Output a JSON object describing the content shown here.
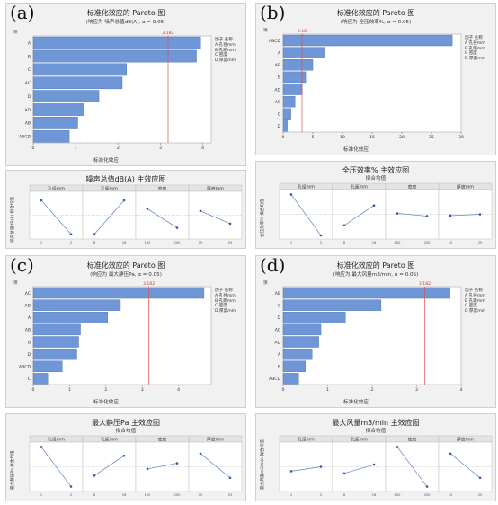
{
  "panels": [
    {
      "letter": "(a)",
      "pareto": {
        "title": "标准化效应的 Pareto 图",
        "subtitle": "(响应为 噪声总值dB(A), α = 0.05)",
        "header_col": "项",
        "ref_label": "3.182",
        "xlabel": "标准化效应",
        "legend_header": [
          "因子",
          "名称"
        ],
        "legend": [
          [
            "A",
            "孔径mm"
          ],
          [
            "B",
            "孔距mm"
          ],
          [
            "C",
            "密度"
          ],
          [
            "D",
            "厚度mm"
          ]
        ]
      },
      "main": {
        "title": "噪声总值dB(A) 主效应图",
        "subtitle": "拟合均值",
        "ylabel": "噪声总值dB(A) 拟合均值",
        "factors": [
          "孔径mm",
          "孔距mm",
          "密度",
          "厚度mm"
        ]
      }
    },
    {
      "letter": "(b)",
      "pareto": {
        "title": "标准化效应的 Pareto 图",
        "subtitle": "(响应为 全压效率%, α = 0.05)",
        "header_col": "项",
        "ref_label": "3.18",
        "xlabel": "标准化效应",
        "legend_header": [
          "因子",
          "名称"
        ],
        "legend": [
          [
            "A",
            "孔径mm"
          ],
          [
            "B",
            "孔距mm"
          ],
          [
            "C",
            "密度"
          ],
          [
            "D",
            "厚度mm"
          ]
        ]
      },
      "main": {
        "title": "全压效率% 主效应图",
        "subtitle": "拟合均值",
        "ylabel": "全压效率% 拟合均值",
        "factors": [
          "孔径mm",
          "孔距mm",
          "密度",
          "厚度mm"
        ]
      }
    },
    {
      "letter": "(c)",
      "pareto": {
        "title": "标准化效应的 Pareto 图",
        "subtitle": "(响应为 最大静压Pa, α = 0.05)",
        "header_col": "项",
        "ref_label": "3.182",
        "xlabel": "标准化效应",
        "legend_header": [
          "因子",
          "名称"
        ],
        "legend": [
          [
            "A",
            "孔径mm"
          ],
          [
            "B",
            "孔距mm"
          ],
          [
            "C",
            "密度"
          ],
          [
            "D",
            "厚度mm"
          ]
        ]
      },
      "main": {
        "title": "最大静压Pa 主效应图",
        "subtitle": "拟合均值",
        "ylabel": "最大静压Pa 拟合均值",
        "factors": [
          "孔径mm",
          "孔距mm",
          "密度",
          "厚度mm"
        ]
      }
    },
    {
      "letter": "(d)",
      "pareto": {
        "title": "标准化效应的 Pareto 图",
        "subtitle": "(响应为 最大风量m3/min, α = 0.05)",
        "header_col": "项",
        "ref_label": "3.182",
        "xlabel": "标准化效应",
        "legend_header": [
          "因子",
          "名称"
        ],
        "legend": [
          [
            "A",
            "孔径mm"
          ],
          [
            "B",
            "孔距mm"
          ],
          [
            "C",
            "密度"
          ],
          [
            "D",
            "厚度mm"
          ]
        ]
      },
      "main": {
        "title": "最大风量m3/min 主效应图",
        "subtitle": "拟合均值",
        "ylabel": "最大风量m3/min 拟合均值",
        "factors": [
          "孔径mm",
          "孔距mm",
          "密度",
          "厚度mm"
        ]
      }
    }
  ],
  "colors": {
    "bar": "#6f96d6",
    "bar_edge": "#4a6fb0",
    "ref_line": "#d9534f",
    "ref_text": "#c0392b",
    "line": "#5a7fc4",
    "point": "#2e5aa8",
    "mean_line": "#bbbbbb"
  },
  "chart_data": [
    {
      "type": "bar",
      "orientation": "horizontal",
      "panel": "a",
      "categories": [
        "A",
        "B",
        "C",
        "AC",
        "D",
        "AD",
        "AB",
        "ABCD"
      ],
      "values": [
        3.95,
        3.85,
        2.2,
        2.1,
        1.55,
        1.2,
        1.05,
        0.85
      ],
      "reference": 3.182,
      "xticks": [
        0,
        1,
        2,
        3,
        4
      ],
      "xlim": [
        0,
        4.2
      ]
    },
    {
      "type": "bar",
      "orientation": "horizontal",
      "panel": "b",
      "categories": [
        "ABCD",
        "A",
        "AB",
        "B",
        "AD",
        "AC",
        "C",
        "D"
      ],
      "values": [
        28.5,
        7,
        5,
        3.8,
        3.2,
        2.0,
        1.3,
        0.7
      ],
      "reference": 3.18,
      "xticks": [
        0,
        5,
        10,
        15,
        20,
        25,
        30
      ],
      "xlim": [
        0,
        30
      ]
    },
    {
      "type": "bar",
      "orientation": "horizontal",
      "panel": "c",
      "categories": [
        "AC",
        "AD",
        "A",
        "AB",
        "B",
        "D",
        "ABCD",
        "C"
      ],
      "values": [
        4.7,
        2.4,
        2.05,
        1.3,
        1.25,
        1.2,
        0.8,
        0.4
      ],
      "reference": 3.182,
      "xticks": [
        0,
        1,
        2,
        3,
        4
      ],
      "xlim": [
        0,
        4.9
      ]
    },
    {
      "type": "bar",
      "orientation": "horizontal",
      "panel": "d",
      "categories": [
        "AB",
        "C",
        "D",
        "AC",
        "AD",
        "A",
        "B",
        "ABCD"
      ],
      "values": [
        3.75,
        2.2,
        1.4,
        0.85,
        0.8,
        0.65,
        0.5,
        0.35
      ],
      "reference": 3.182,
      "xticks": [
        0,
        1,
        2,
        3,
        4
      ],
      "xlim": [
        0,
        4
      ]
    },
    {
      "type": "line",
      "panel": "a-main",
      "facets": [
        {
          "factor": "孔径mm",
          "x": [
            "1",
            "2"
          ],
          "y": [
            0.85,
            0.05
          ]
        },
        {
          "factor": "孔距mm",
          "x": [
            "8",
            "16"
          ],
          "y": [
            0.05,
            0.85
          ]
        },
        {
          "factor": "密度",
          "x": [
            "100",
            "200"
          ],
          "y": [
            0.65,
            0.2
          ]
        },
        {
          "factor": "厚度mm",
          "x": [
            "15",
            "25"
          ],
          "y": [
            0.6,
            0.3
          ]
        }
      ]
    },
    {
      "type": "line",
      "panel": "b-main",
      "facets": [
        {
          "factor": "孔径mm",
          "x": [
            "1",
            "2"
          ],
          "y": [
            0.95,
            0.02
          ]
        },
        {
          "factor": "孔距mm",
          "x": [
            "8",
            "16"
          ],
          "y": [
            0.25,
            0.7
          ]
        },
        {
          "factor": "密度",
          "x": [
            "100",
            "200"
          ],
          "y": [
            0.52,
            0.46
          ]
        },
        {
          "factor": "厚度mm",
          "x": [
            "15",
            "25"
          ],
          "y": [
            0.47,
            0.5
          ]
        }
      ]
    },
    {
      "type": "line",
      "panel": "c-main",
      "facets": [
        {
          "factor": "孔径mm",
          "x": [
            "1",
            "2"
          ],
          "y": [
            0.95,
            0.05
          ]
        },
        {
          "factor": "孔距mm",
          "x": [
            "8",
            "16"
          ],
          "y": [
            0.3,
            0.75
          ]
        },
        {
          "factor": "密度",
          "x": [
            "100",
            "200"
          ],
          "y": [
            0.45,
            0.58
          ]
        },
        {
          "factor": "厚度mm",
          "x": [
            "15",
            "25"
          ],
          "y": [
            0.8,
            0.25
          ]
        }
      ]
    },
    {
      "type": "line",
      "panel": "d-main",
      "facets": [
        {
          "factor": "孔径mm",
          "x": [
            "1",
            "2"
          ],
          "y": [
            0.4,
            0.5
          ]
        },
        {
          "factor": "孔距mm",
          "x": [
            "8",
            "16"
          ],
          "y": [
            0.35,
            0.55
          ]
        },
        {
          "factor": "密度",
          "x": [
            "100",
            "200"
          ],
          "y": [
            0.95,
            0.05
          ]
        },
        {
          "factor": "厚度mm",
          "x": [
            "15",
            "25"
          ],
          "y": [
            0.8,
            0.25
          ]
        }
      ]
    }
  ]
}
